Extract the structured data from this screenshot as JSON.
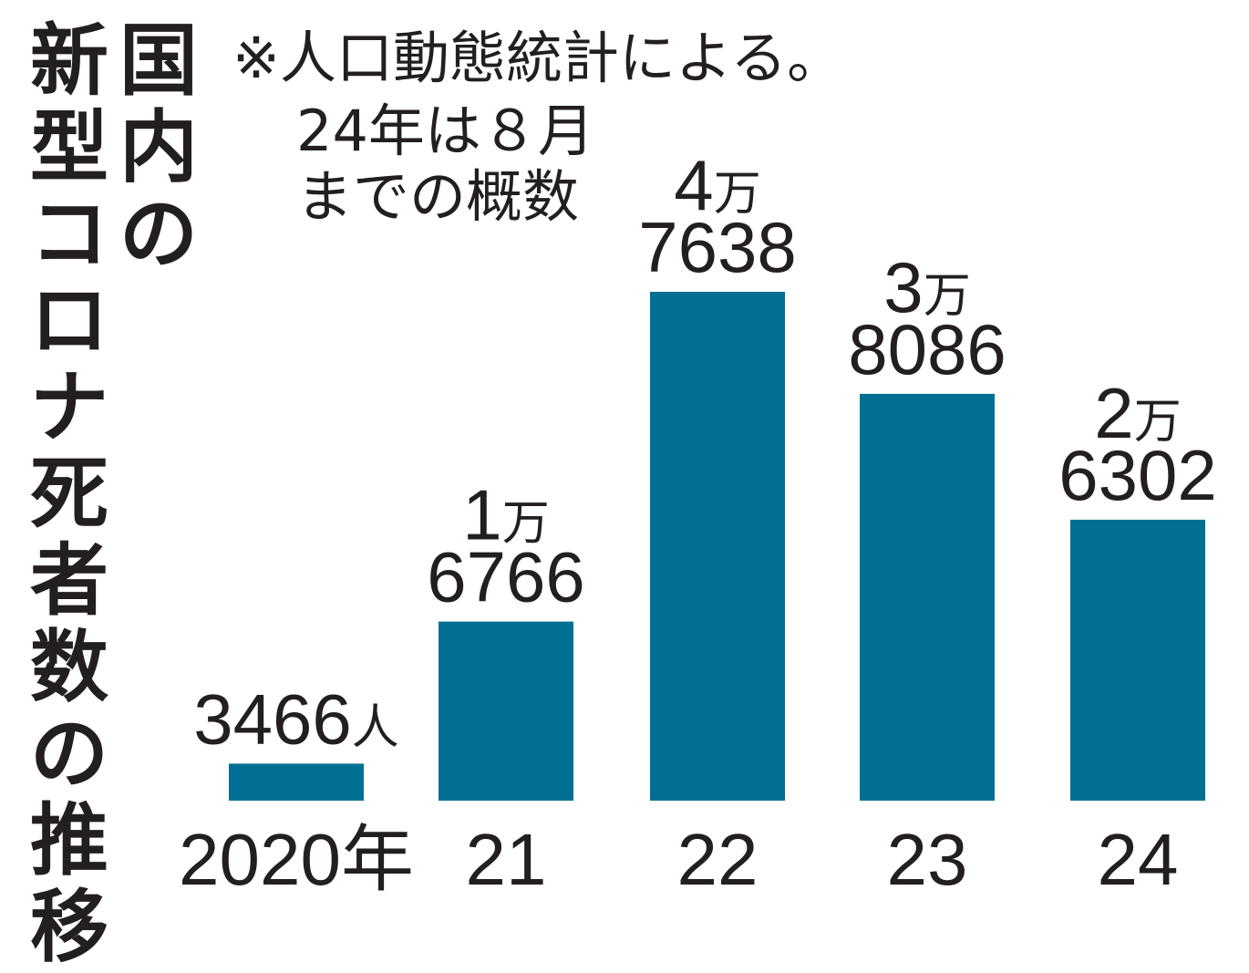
{
  "title": [
    "国内の",
    "新型コロナ死者数の推移"
  ],
  "note": [
    "※人口動態統計による。",
    "24年は８月",
    "までの概数"
  ],
  "bar_color": "#006f94",
  "chart_data": {
    "type": "bar",
    "title": "国内の新型コロナ死者数の推移",
    "categories": [
      "2020年",
      "21",
      "22",
      "23",
      "24"
    ],
    "values": [
      3466,
      16766,
      47638,
      38086,
      26302
    ],
    "labels": [
      {
        "top": "",
        "bottom": "3466人"
      },
      {
        "top": "1万",
        "bottom": "6766"
      },
      {
        "top": "4万",
        "bottom": "7638"
      },
      {
        "top": "3万",
        "bottom": "8086"
      },
      {
        "top": "2万",
        "bottom": "6302"
      }
    ],
    "xlabel": "",
    "ylabel": "",
    "grid": false,
    "legend": "none"
  }
}
